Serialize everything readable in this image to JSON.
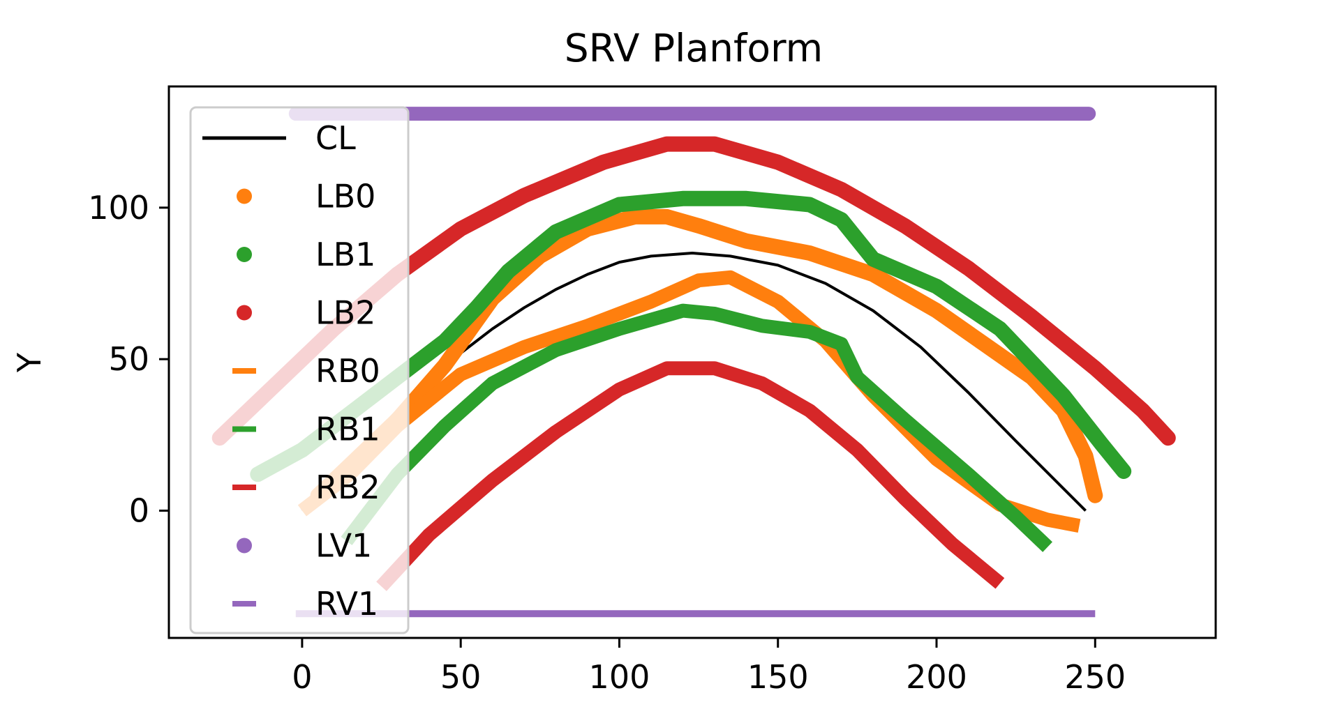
{
  "chart_data": {
    "type": "line",
    "title": "SRV Planform",
    "xlabel": "",
    "ylabel": "Y",
    "xlim": [
      -42,
      288
    ],
    "ylim": [
      -42,
      140
    ],
    "xticks": [
      0,
      50,
      100,
      150,
      200,
      250
    ],
    "yticks": [
      0,
      50,
      100
    ],
    "grid": false,
    "legend_position": "upper-left",
    "series": [
      {
        "name": "CL",
        "style": "line",
        "color": "#000000",
        "x": [
          0,
          10,
          20,
          30,
          40,
          50,
          60,
          70,
          80,
          90,
          100,
          110,
          123,
          135,
          150,
          165,
          180,
          195,
          210,
          225,
          247
        ],
        "y": [
          0,
          11,
          22,
          33,
          42,
          52,
          60,
          67,
          73,
          78,
          82,
          84,
          85,
          84,
          81,
          75,
          66,
          54,
          39,
          23,
          0
        ]
      },
      {
        "name": "LB0",
        "style": "markers",
        "color": "#ff7f0e",
        "x": [
          5,
          15,
          30,
          45,
          60,
          75,
          90,
          105,
          115,
          125,
          140,
          160,
          180,
          200,
          215,
          230,
          240,
          247,
          250
        ],
        "y": [
          5,
          15,
          30,
          48,
          70,
          84,
          93,
          97,
          97,
          94,
          89,
          85,
          78,
          66,
          55,
          44,
          33,
          18,
          5
        ]
      },
      {
        "name": "LB1",
        "style": "markers",
        "color": "#2ca02c",
        "x": [
          -14,
          0,
          15,
          30,
          45,
          55,
          65,
          80,
          100,
          120,
          140,
          160,
          170,
          180,
          200,
          220,
          240,
          252,
          259
        ],
        "y": [
          12,
          20,
          32,
          44,
          56,
          67,
          79,
          92,
          101,
          103,
          103,
          101,
          96,
          83,
          74,
          60,
          38,
          22,
          13
        ]
      },
      {
        "name": "LB2",
        "style": "markers",
        "color": "#d62728",
        "x": [
          -26,
          -10,
          10,
          30,
          50,
          70,
          95,
          115,
          130,
          150,
          170,
          190,
          210,
          230,
          250,
          265,
          273
        ],
        "y": [
          24,
          40,
          60,
          78,
          93,
          104,
          115,
          121,
          121,
          115,
          106,
          94,
          80,
          64,
          47,
          33,
          24
        ]
      },
      {
        "name": "RB0",
        "style": "dashes",
        "color": "#ff7f0e",
        "x": [
          0,
          15,
          30,
          50,
          70,
          90,
          110,
          125,
          135,
          150,
          165,
          180,
          200,
          220,
          235,
          245
        ],
        "y": [
          0,
          12,
          28,
          45,
          54,
          61,
          69,
          76,
          77,
          69,
          56,
          38,
          17,
          2,
          -3,
          -5
        ]
      },
      {
        "name": "RB1",
        "style": "dashes",
        "color": "#2ca02c",
        "x": [
          14,
          30,
          45,
          60,
          80,
          100,
          120,
          130,
          145,
          160,
          170,
          175,
          190,
          210,
          225,
          235
        ],
        "y": [
          -10,
          12,
          28,
          42,
          53,
          60,
          66,
          65,
          61,
          59,
          55,
          44,
          30,
          12,
          -2,
          -12
        ]
      },
      {
        "name": "RB2",
        "style": "dashes",
        "color": "#d62728",
        "x": [
          25,
          40,
          60,
          80,
          100,
          115,
          130,
          145,
          160,
          175,
          190,
          205,
          220
        ],
        "y": [
          -25,
          -8,
          10,
          26,
          40,
          47,
          47,
          42,
          33,
          20,
          4,
          -11,
          -24
        ]
      },
      {
        "name": "LV1",
        "style": "markers",
        "color": "#9467bd",
        "x": [
          -2,
          248
        ],
        "y": [
          131,
          131
        ]
      },
      {
        "name": "RV1",
        "style": "dashes",
        "color": "#9467bd",
        "x": [
          -2,
          250
        ],
        "y": [
          -34,
          -34
        ]
      }
    ]
  }
}
